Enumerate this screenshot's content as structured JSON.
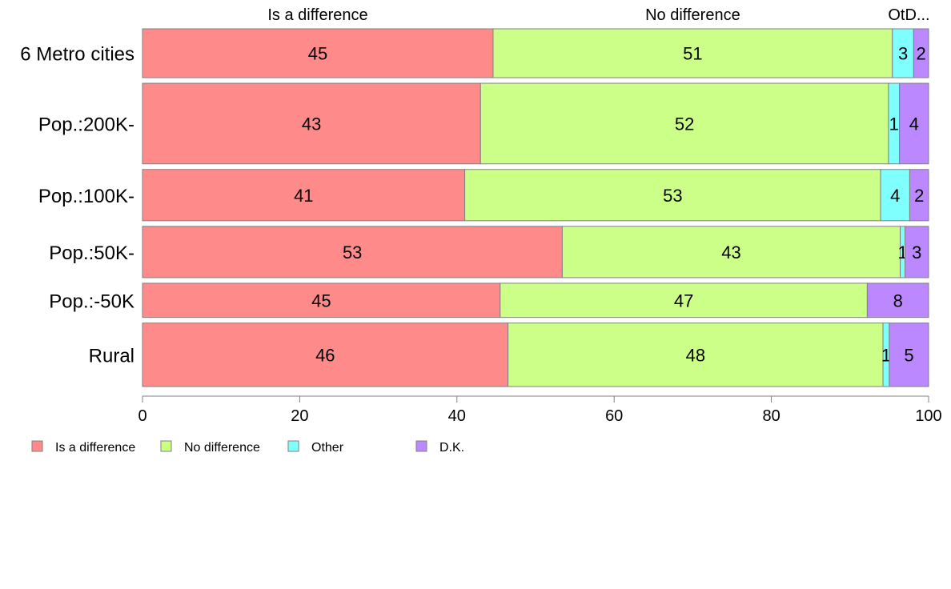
{
  "chart_data": {
    "type": "bar",
    "orientation": "horizontal",
    "stacked": true,
    "normalized": true,
    "categories": [
      "6 Metro cities",
      "Pop.:200K-",
      "Pop.:100K-",
      "Pop.:50K-",
      "Pop.:-50K",
      "Rural"
    ],
    "series": [
      {
        "name": "Is a difference",
        "color": "#FF8A8A",
        "values": [
          44.6,
          43.0,
          41.0,
          53.4,
          45.5,
          46.5
        ]
      },
      {
        "name": "No difference",
        "color": "#CCFF88",
        "values": [
          50.8,
          51.9,
          52.9,
          43.0,
          46.7,
          47.7
        ]
      },
      {
        "name": "Other",
        "color": "#80FFFF",
        "values": [
          2.7,
          1.4,
          3.7,
          0.6,
          0.0,
          0.8
        ]
      },
      {
        "name": "D.K.",
        "color": "#BB88FF",
        "values": [
          1.9,
          3.7,
          2.4,
          3.0,
          7.8,
          5.0
        ]
      }
    ],
    "value_labels": [
      [
        "45",
        "51",
        "3",
        "2"
      ],
      [
        "43",
        "52",
        "1",
        "4"
      ],
      [
        "41",
        "53",
        "4",
        "2"
      ],
      [
        "53",
        "43",
        "1",
        "3"
      ],
      [
        "45",
        "47",
        "",
        "8"
      ],
      [
        "46",
        "48",
        "1",
        "5"
      ]
    ],
    "top_labels": [
      {
        "text": "Is a difference",
        "center": 22.3
      },
      {
        "text": "No difference",
        "center": 70.0
      },
      {
        "text": "OtD...",
        "center": 97.5
      }
    ],
    "bar_widths": [
      1.0,
      1.65,
      1.05,
      1.05,
      0.7,
      1.3
    ],
    "xlim": [
      0,
      100
    ],
    "xticks": [
      "0",
      "20",
      "40",
      "60",
      "80",
      "100"
    ],
    "xlabel": "",
    "ylabel": "",
    "title": "",
    "grid": false,
    "legend_position": "bottom-left"
  }
}
